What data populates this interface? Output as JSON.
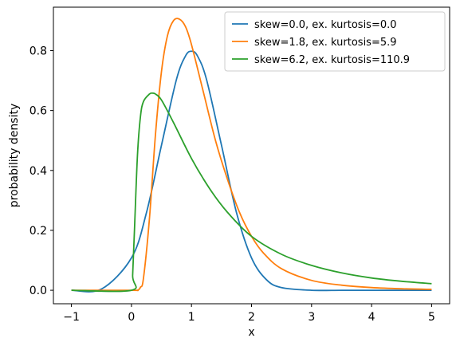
{
  "chart_data": {
    "type": "line",
    "xlabel": "x",
    "ylabel": "probability density",
    "xlim": [
      -1.3,
      5.3
    ],
    "ylim": [
      -0.045,
      0.945
    ],
    "xticks": [
      -1,
      0,
      1,
      2,
      3,
      4,
      5
    ],
    "xtick_labels": [
      "−1",
      "0",
      "1",
      "2",
      "3",
      "4",
      "5"
    ],
    "yticks": [
      0.0,
      0.2,
      0.4,
      0.6,
      0.8
    ],
    "ytick_labels": [
      "0.0",
      "0.2",
      "0.4",
      "0.6",
      "0.8"
    ],
    "grid": false,
    "legend_position": "top-right",
    "series": [
      {
        "name": "skew=0.0, ex. kurtosis=0.0",
        "color": "#1f77b4",
        "x": [
          -1,
          -0.5,
          0,
          0.25,
          0.5,
          0.75,
          0.9,
          1.0,
          1.1,
          1.25,
          1.5,
          1.75,
          2.0,
          2.25,
          2.5,
          3.0,
          3.5,
          4,
          5
        ],
        "y": [
          0.0,
          0.004,
          0.108,
          0.259,
          0.484,
          0.704,
          0.782,
          0.798,
          0.782,
          0.704,
          0.484,
          0.259,
          0.108,
          0.035,
          0.009,
          0.0,
          0.0,
          0.0,
          0.0
        ]
      },
      {
        "name": "skew=1.8, ex. kurtosis=5.9",
        "color": "#ff7f0e",
        "x": [
          -1,
          0,
          0.1,
          0.15,
          0.2,
          0.3,
          0.4,
          0.5,
          0.6,
          0.7,
          0.8,
          0.9,
          1.0,
          1.2,
          1.4,
          1.6,
          1.8,
          2.0,
          2.2,
          2.5,
          3.0,
          3.5,
          4.0,
          4.5,
          5.0
        ],
        "y": [
          0.0,
          0.0,
          0.0,
          0.01,
          0.04,
          0.24,
          0.52,
          0.73,
          0.85,
          0.9,
          0.905,
          0.88,
          0.82,
          0.66,
          0.5,
          0.37,
          0.26,
          0.18,
          0.124,
          0.072,
          0.033,
          0.017,
          0.009,
          0.005,
          0.003
        ]
      },
      {
        "name": "skew=6.2, ex. kurtosis=110.9",
        "color": "#2ca02c",
        "x": [
          -1,
          0,
          0.02,
          0.05,
          0.1,
          0.15,
          0.2,
          0.3,
          0.35,
          0.4,
          0.5,
          0.7,
          1.0,
          1.3,
          1.6,
          2.0,
          2.5,
          3.0,
          3.5,
          4.0,
          4.5,
          5.0
        ],
        "y": [
          0.0,
          0.0,
          0.05,
          0.2,
          0.45,
          0.58,
          0.63,
          0.655,
          0.658,
          0.655,
          0.635,
          0.56,
          0.44,
          0.34,
          0.26,
          0.18,
          0.12,
          0.083,
          0.058,
          0.041,
          0.03,
          0.022
        ]
      }
    ]
  }
}
